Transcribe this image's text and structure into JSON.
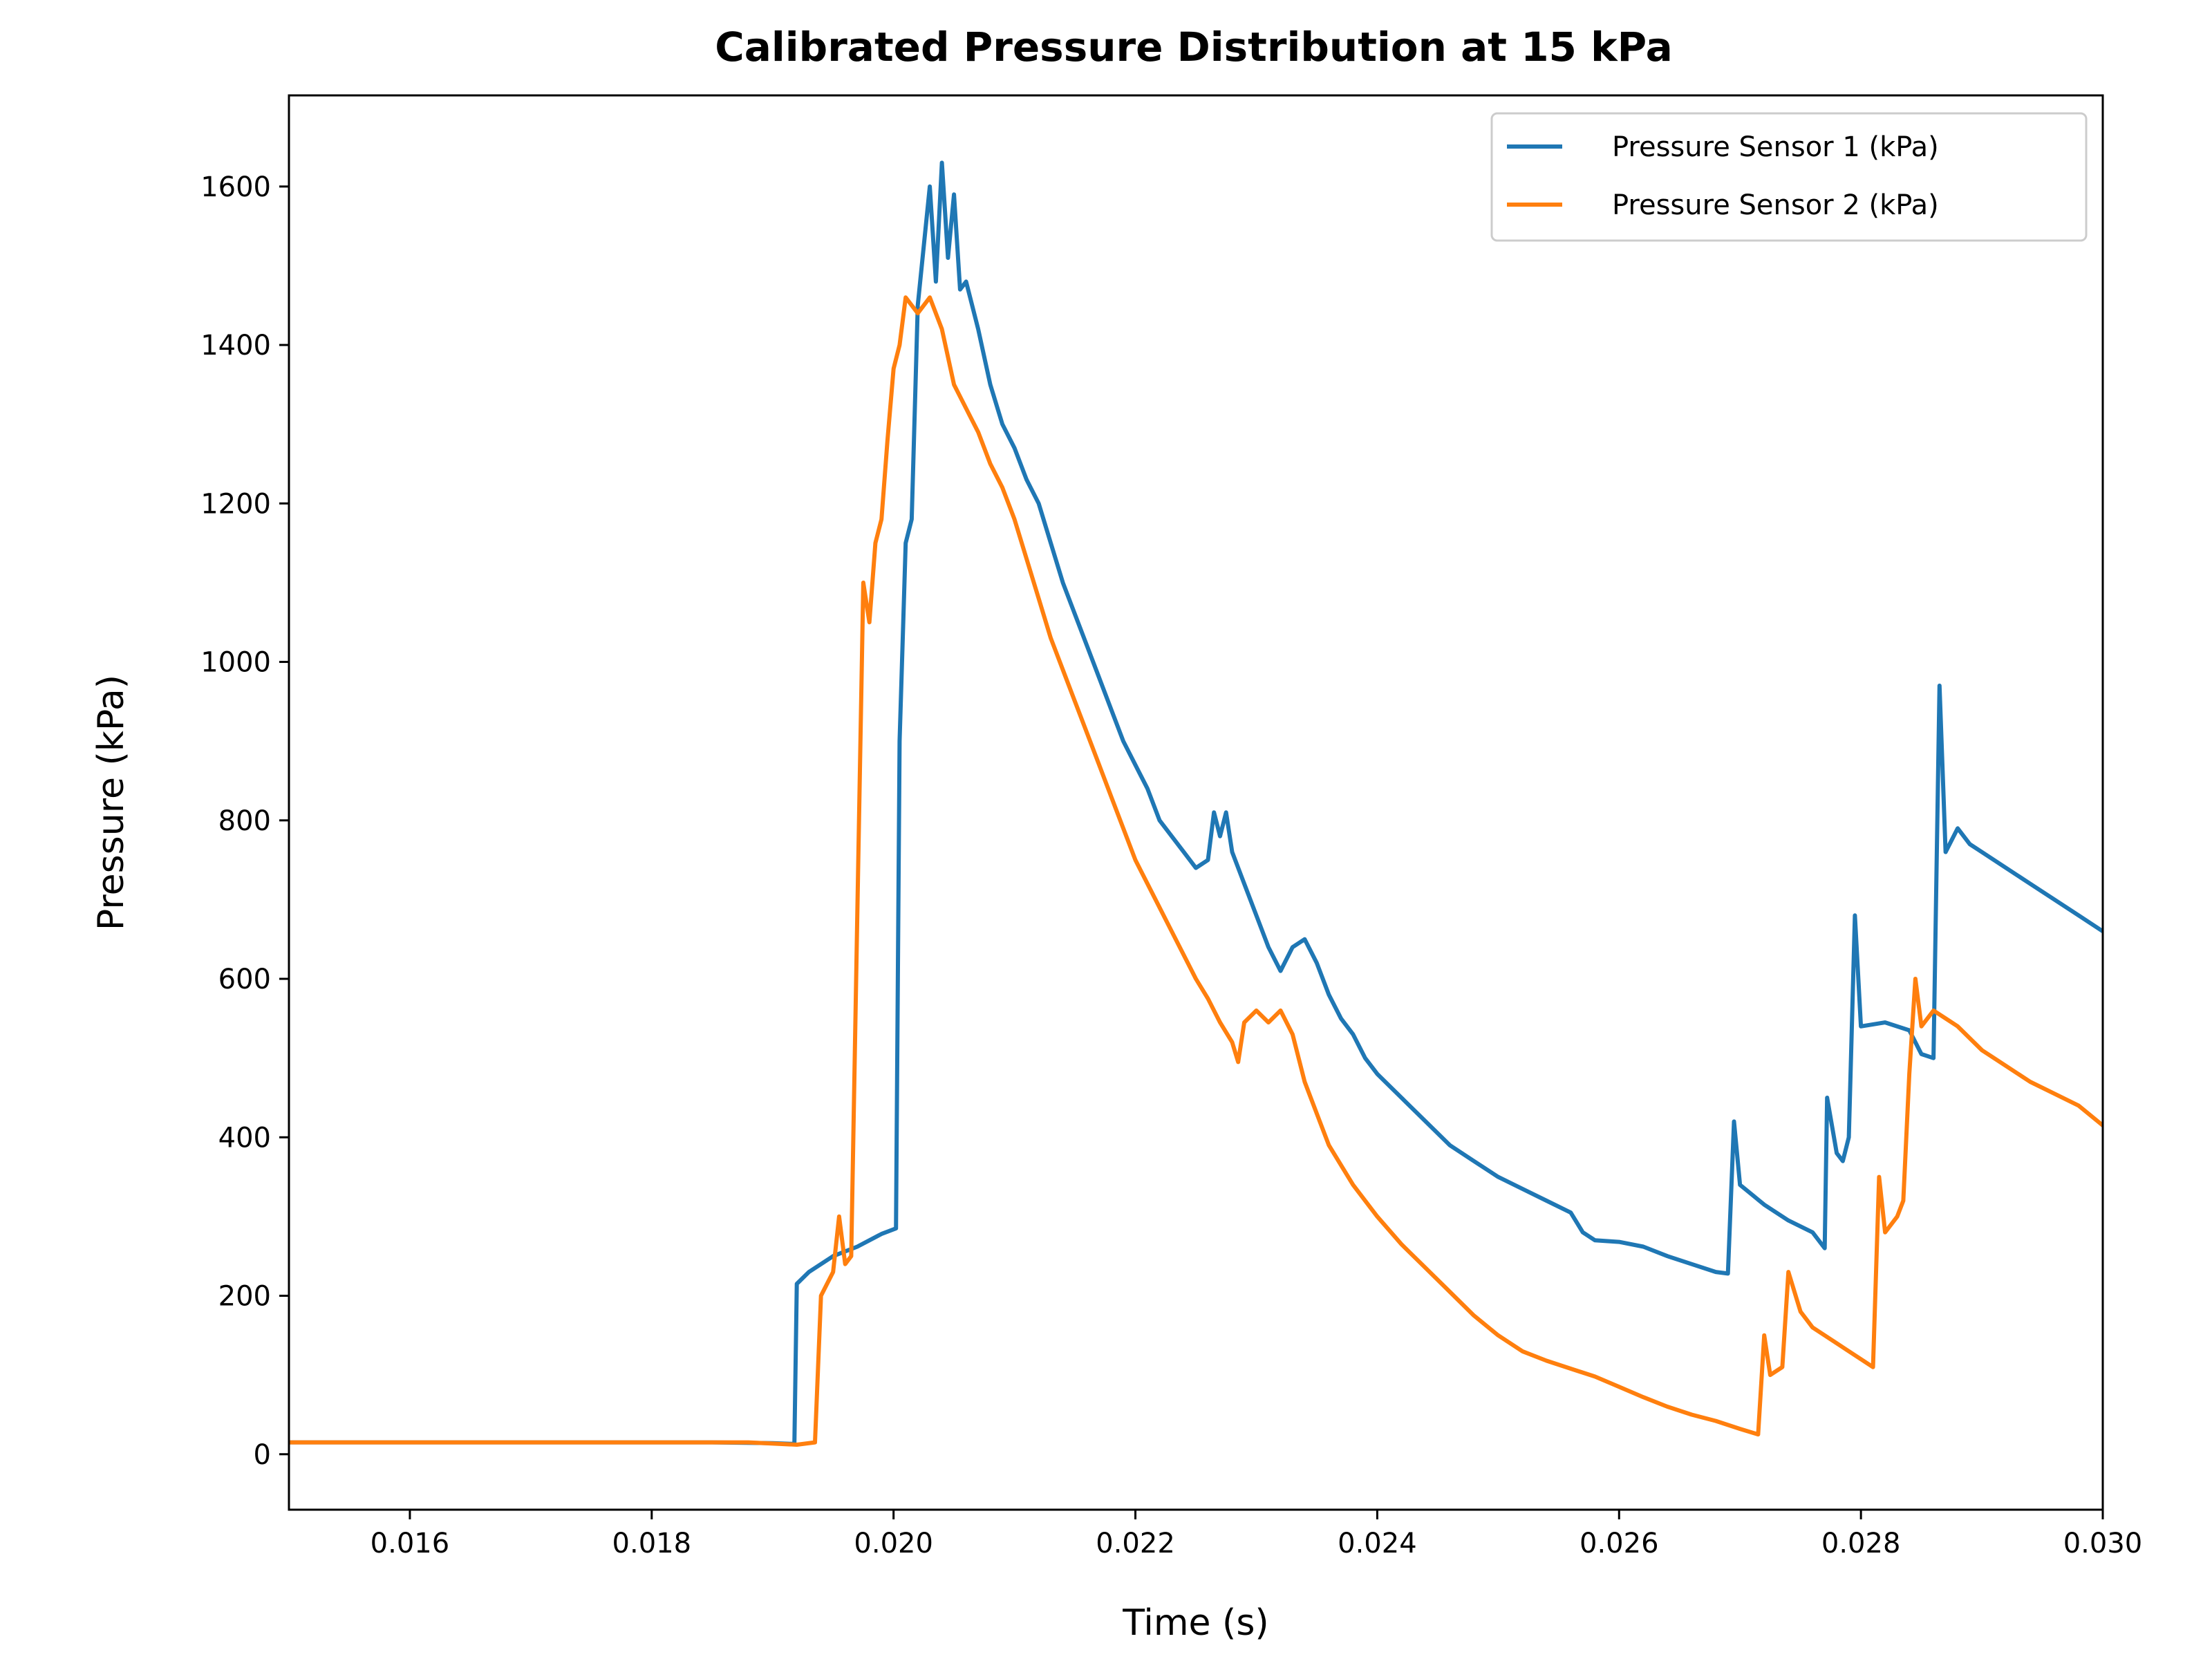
{
  "chart_data": {
    "type": "line",
    "title": "Calibrated Pressure Distribution at 15 kPa",
    "xlabel": "Time (s)",
    "ylabel": "Pressure (kPa)",
    "xlim": [
      0.015,
      0.03
    ],
    "ylim": [
      -70,
      1715
    ],
    "x_ticks": [
      0.016,
      0.018,
      0.02,
      0.022,
      0.024,
      0.026,
      0.028,
      0.03
    ],
    "x_tick_labels": [
      "0.016",
      "0.018",
      "0.020",
      "0.022",
      "0.024",
      "0.026",
      "0.028",
      "0.030"
    ],
    "y_ticks": [
      0,
      200,
      400,
      600,
      800,
      1000,
      1200,
      1400,
      1600
    ],
    "y_tick_labels": [
      "0",
      "200",
      "400",
      "600",
      "800",
      "1000",
      "1200",
      "1400",
      "1600"
    ],
    "grid": false,
    "legend_position": "top-right",
    "series": [
      {
        "name": "Pressure Sensor 1 (kPa)",
        "color": "#1f77b4",
        "points": [
          [
            0.015,
            15
          ],
          [
            0.0185,
            15
          ],
          [
            0.019,
            14
          ],
          [
            0.01918,
            13
          ],
          [
            0.0192,
            215
          ],
          [
            0.0193,
            230
          ],
          [
            0.0195,
            250
          ],
          [
            0.0197,
            262
          ],
          [
            0.0199,
            278
          ],
          [
            0.02002,
            285
          ],
          [
            0.02005,
            900
          ],
          [
            0.0201,
            1150
          ],
          [
            0.02015,
            1180
          ],
          [
            0.0202,
            1450
          ],
          [
            0.0203,
            1600
          ],
          [
            0.02035,
            1480
          ],
          [
            0.0204,
            1630
          ],
          [
            0.02045,
            1510
          ],
          [
            0.0205,
            1590
          ],
          [
            0.02055,
            1470
          ],
          [
            0.0206,
            1480
          ],
          [
            0.0207,
            1420
          ],
          [
            0.0208,
            1350
          ],
          [
            0.0209,
            1300
          ],
          [
            0.021,
            1270
          ],
          [
            0.0211,
            1230
          ],
          [
            0.0212,
            1200
          ],
          [
            0.0213,
            1150
          ],
          [
            0.0214,
            1100
          ],
          [
            0.0215,
            1060
          ],
          [
            0.0216,
            1020
          ],
          [
            0.0217,
            980
          ],
          [
            0.0218,
            940
          ],
          [
            0.0219,
            900
          ],
          [
            0.022,
            870
          ],
          [
            0.0221,
            840
          ],
          [
            0.0222,
            800
          ],
          [
            0.0223,
            780
          ],
          [
            0.0224,
            760
          ],
          [
            0.0225,
            740
          ],
          [
            0.0226,
            750
          ],
          [
            0.02265,
            810
          ],
          [
            0.0227,
            780
          ],
          [
            0.02275,
            810
          ],
          [
            0.0228,
            760
          ],
          [
            0.0229,
            720
          ],
          [
            0.023,
            680
          ],
          [
            0.0231,
            640
          ],
          [
            0.0232,
            610
          ],
          [
            0.0233,
            640
          ],
          [
            0.0234,
            650
          ],
          [
            0.0235,
            620
          ],
          [
            0.0236,
            580
          ],
          [
            0.0237,
            550
          ],
          [
            0.0238,
            530
          ],
          [
            0.0239,
            500
          ],
          [
            0.024,
            480
          ],
          [
            0.0242,
            450
          ],
          [
            0.0244,
            420
          ],
          [
            0.0246,
            390
          ],
          [
            0.0248,
            370
          ],
          [
            0.025,
            350
          ],
          [
            0.0252,
            335
          ],
          [
            0.0254,
            320
          ],
          [
            0.0256,
            305
          ],
          [
            0.0257,
            280
          ],
          [
            0.0258,
            270
          ],
          [
            0.026,
            268
          ],
          [
            0.0262,
            262
          ],
          [
            0.0264,
            250
          ],
          [
            0.0266,
            240
          ],
          [
            0.0268,
            230
          ],
          [
            0.0269,
            228
          ],
          [
            0.02695,
            420
          ],
          [
            0.027,
            340
          ],
          [
            0.0272,
            315
          ],
          [
            0.0274,
            295
          ],
          [
            0.0276,
            280
          ],
          [
            0.0277,
            260
          ],
          [
            0.02772,
            450
          ],
          [
            0.0278,
            380
          ],
          [
            0.02785,
            370
          ],
          [
            0.0279,
            400
          ],
          [
            0.02795,
            680
          ],
          [
            0.028,
            540
          ],
          [
            0.0282,
            545
          ],
          [
            0.0284,
            535
          ],
          [
            0.0285,
            505
          ],
          [
            0.0286,
            500
          ],
          [
            0.02865,
            970
          ],
          [
            0.0287,
            760
          ],
          [
            0.0288,
            790
          ],
          [
            0.0289,
            770
          ],
          [
            0.029,
            760
          ],
          [
            0.0292,
            740
          ],
          [
            0.0294,
            720
          ],
          [
            0.0296,
            700
          ],
          [
            0.0298,
            680
          ],
          [
            0.03,
            660
          ]
        ]
      },
      {
        "name": "Pressure Sensor 2 (kPa)",
        "color": "#ff7f0e",
        "points": [
          [
            0.015,
            15
          ],
          [
            0.0188,
            15
          ],
          [
            0.0192,
            12
          ],
          [
            0.01935,
            15
          ],
          [
            0.0194,
            200
          ],
          [
            0.0195,
            230
          ],
          [
            0.01955,
            300
          ],
          [
            0.0196,
            240
          ],
          [
            0.01965,
            250
          ],
          [
            0.0197,
            680
          ],
          [
            0.01975,
            1100
          ],
          [
            0.0198,
            1050
          ],
          [
            0.01985,
            1150
          ],
          [
            0.0199,
            1180
          ],
          [
            0.01995,
            1280
          ],
          [
            0.02,
            1370
          ],
          [
            0.02005,
            1400
          ],
          [
            0.0201,
            1460
          ],
          [
            0.0202,
            1440
          ],
          [
            0.0203,
            1460
          ],
          [
            0.0204,
            1420
          ],
          [
            0.0205,
            1350
          ],
          [
            0.0206,
            1320
          ],
          [
            0.0207,
            1290
          ],
          [
            0.0208,
            1250
          ],
          [
            0.0209,
            1220
          ],
          [
            0.021,
            1180
          ],
          [
            0.0211,
            1130
          ],
          [
            0.0212,
            1080
          ],
          [
            0.0213,
            1030
          ],
          [
            0.0214,
            990
          ],
          [
            0.0215,
            950
          ],
          [
            0.0216,
            910
          ],
          [
            0.0217,
            870
          ],
          [
            0.0218,
            830
          ],
          [
            0.0219,
            790
          ],
          [
            0.022,
            750
          ],
          [
            0.0221,
            720
          ],
          [
            0.0222,
            690
          ],
          [
            0.0223,
            660
          ],
          [
            0.0224,
            630
          ],
          [
            0.0225,
            600
          ],
          [
            0.0226,
            575
          ],
          [
            0.0227,
            545
          ],
          [
            0.0228,
            520
          ],
          [
            0.02285,
            495
          ],
          [
            0.0229,
            545
          ],
          [
            0.023,
            560
          ],
          [
            0.0231,
            545
          ],
          [
            0.0232,
            560
          ],
          [
            0.0233,
            530
          ],
          [
            0.0234,
            470
          ],
          [
            0.0235,
            430
          ],
          [
            0.0236,
            390
          ],
          [
            0.0237,
            365
          ],
          [
            0.0238,
            340
          ],
          [
            0.024,
            300
          ],
          [
            0.0242,
            265
          ],
          [
            0.0244,
            235
          ],
          [
            0.0246,
            205
          ],
          [
            0.0248,
            175
          ],
          [
            0.025,
            150
          ],
          [
            0.0252,
            130
          ],
          [
            0.0254,
            118
          ],
          [
            0.0256,
            108
          ],
          [
            0.0258,
            98
          ],
          [
            0.026,
            85
          ],
          [
            0.0262,
            72
          ],
          [
            0.0264,
            60
          ],
          [
            0.0266,
            50
          ],
          [
            0.0268,
            42
          ],
          [
            0.027,
            32
          ],
          [
            0.02715,
            25
          ],
          [
            0.0272,
            150
          ],
          [
            0.02725,
            100
          ],
          [
            0.02735,
            110
          ],
          [
            0.0274,
            230
          ],
          [
            0.0275,
            180
          ],
          [
            0.0276,
            160
          ],
          [
            0.0278,
            140
          ],
          [
            0.028,
            120
          ],
          [
            0.0281,
            110
          ],
          [
            0.02815,
            350
          ],
          [
            0.0282,
            280
          ],
          [
            0.0283,
            300
          ],
          [
            0.02835,
            320
          ],
          [
            0.0284,
            480
          ],
          [
            0.02845,
            600
          ],
          [
            0.0285,
            540
          ],
          [
            0.0286,
            560
          ],
          [
            0.0287,
            550
          ],
          [
            0.0288,
            540
          ],
          [
            0.029,
            510
          ],
          [
            0.0292,
            490
          ],
          [
            0.0294,
            470
          ],
          [
            0.0296,
            455
          ],
          [
            0.0298,
            440
          ],
          [
            0.03,
            415
          ]
        ]
      }
    ]
  }
}
